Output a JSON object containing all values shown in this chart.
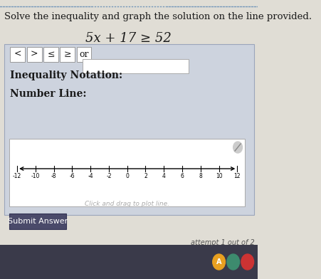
{
  "title": "Solve the inequality and graph the solution on the line provided.",
  "equation": "5x + 17 ≥ 52",
  "buttons": [
    "<",
    ">",
    "≤",
    "≥",
    "or"
  ],
  "inequality_label": "Inequality Notation:",
  "number_line_label": "Number Line:",
  "number_line_hint": "Click and drag to plot line.",
  "submit_text": "Submit Answer",
  "attempt_text": "attempt 1 out of 2",
  "tick_values": [
    -12,
    -10,
    -8,
    -6,
    -4,
    -2,
    0,
    2,
    4,
    6,
    8,
    10,
    12
  ],
  "bg_color": "#cdd3de",
  "white": "#ffffff",
  "submit_bg": "#4a4a6a",
  "text_color": "#1a1a1a",
  "page_bg": "#e0ddd5",
  "top_border_color": "#7799bb",
  "input_box_color": "#f5f5f5",
  "taskbar_color": "#3a3a4a",
  "icon_colors": [
    "#e8a020",
    "#5599cc",
    "#cc3333",
    "#44aa44"
  ]
}
